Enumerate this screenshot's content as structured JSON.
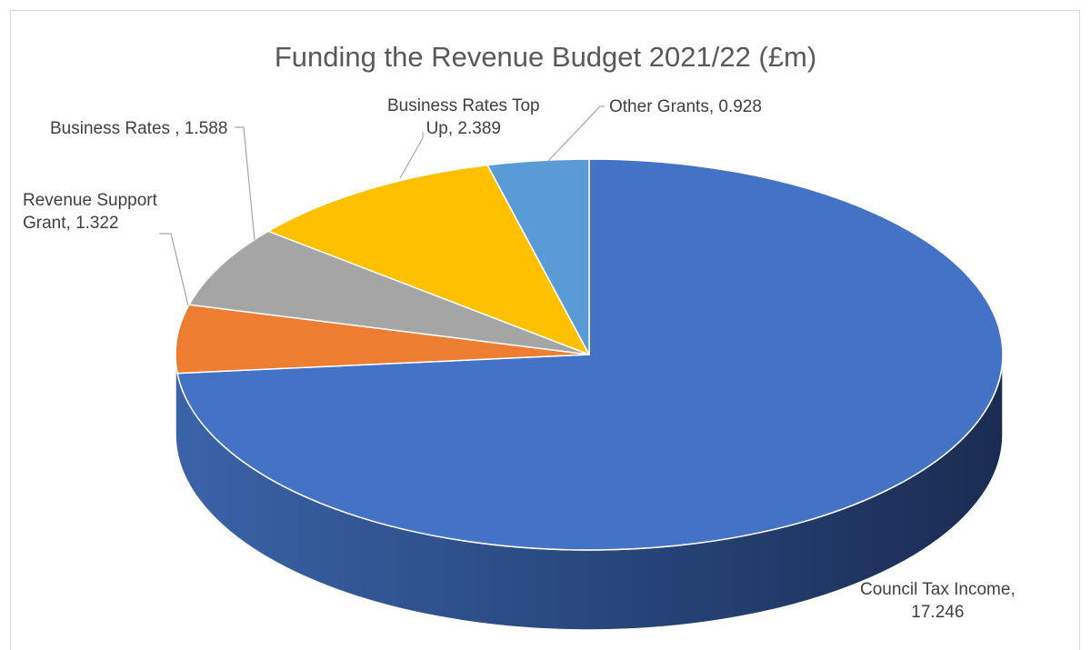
{
  "chart_data": {
    "type": "pie",
    "subtype": "3d",
    "title": "Funding the Revenue Budget 2021/22 (£m)",
    "slices": [
      {
        "label": "Council Tax Income",
        "value": 17.246,
        "color": "#4472c4",
        "data_label": [
          "Council Tax Income,",
          "17.246"
        ]
      },
      {
        "label": "Revenue Support Grant",
        "value": 1.322,
        "color": "#ed7d31",
        "data_label": [
          "Revenue Support",
          "Grant, 1.322"
        ]
      },
      {
        "label": "Business Rates",
        "value": 1.588,
        "color": "#a5a5a5",
        "data_label": [
          "Business Rates , 1.588"
        ]
      },
      {
        "label": "Business Rates Top Up",
        "value": 2.389,
        "color": "#ffc000",
        "data_label": [
          "Business Rates Top",
          "Up, 2.389"
        ]
      },
      {
        "label": "Other Grants",
        "value": 0.928,
        "color": "#5b9bd5",
        "data_label": [
          "Other Grants, 0.928"
        ]
      }
    ],
    "legend": "none",
    "data_labels": "outside with leader lines"
  }
}
